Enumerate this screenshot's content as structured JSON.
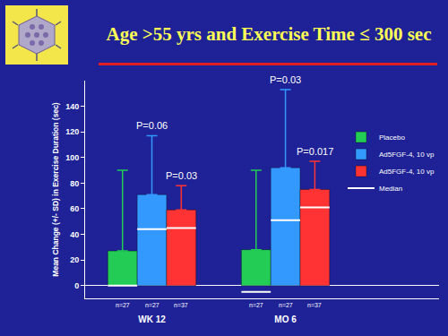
{
  "chart_data": {
    "type": "bar",
    "title": "Age >55 yrs and Exercise Time ≤ 300 sec",
    "y_label": "Mean Change (+/- SD) in Exercise Duration (sec)",
    "categories": [
      "WK 12",
      "MO 6"
    ],
    "series": [
      {
        "name": "Placebo",
        "color": "#22cc55",
        "values": [
          27,
          28
        ],
        "error": [
          63,
          62
        ],
        "medians": [
          0,
          -5
        ],
        "n_label": "n=27"
      },
      {
        "name": "Ad5FGF-4, 10 vp",
        "color": "#3399ff",
        "values": [
          71,
          92
        ],
        "error": [
          46,
          61
        ],
        "medians": [
          44,
          51
        ],
        "n_label": "n=27"
      },
      {
        "name": "Ad5FGF-4, 10 vp",
        "color": "#ff3333",
        "values": [
          59,
          75
        ],
        "error": [
          19,
          22
        ],
        "medians": [
          45,
          61
        ],
        "n_label": "n=37"
      }
    ],
    "median_label": "Median",
    "ylim": [
      -10,
      160
    ],
    "yticks": [
      0,
      20,
      40,
      60,
      80,
      100,
      120,
      140
    ],
    "grid": false,
    "legend": "upper right",
    "annotations": [
      {
        "text": "P=0.06",
        "category": 0,
        "series": 1
      },
      {
        "text": "P=0.03",
        "category": 0,
        "series": 2
      },
      {
        "text": "P=0.03",
        "category": 1,
        "series": 1
      },
      {
        "text": "P=0.017",
        "category": 1,
        "series": 2
      }
    ]
  }
}
